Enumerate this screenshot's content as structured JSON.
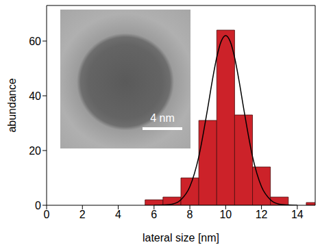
{
  "chart_data": {
    "type": "histogram",
    "x_label": "lateral size [nm]",
    "y_label": "abundance",
    "bins": [
      5.5,
      6.5,
      7.5,
      8.5,
      9.5,
      10.5,
      11.5,
      12.5,
      13.5,
      14.5,
      15.5
    ],
    "values": [
      2,
      3,
      10,
      31,
      64,
      33,
      14,
      3,
      0,
      1
    ],
    "color": "#cc2229",
    "fit_curve": {
      "x": [
        6,
        6.5,
        7,
        7.5,
        8,
        8.5,
        9,
        9.25,
        9.5,
        9.75,
        10,
        10.25,
        10.5,
        10.75,
        11,
        11.5,
        12,
        12.5,
        13,
        13.5,
        14
      ],
      "y": [
        0,
        0.1,
        0.4,
        2,
        6.8,
        17.8,
        35.6,
        45.4,
        54,
        59.9,
        62,
        59.9,
        54,
        45.4,
        35.6,
        17.8,
        6.8,
        2,
        0.4,
        0.1,
        0
      ],
      "color": "#000000"
    },
    "xlim": [
      0,
      15
    ],
    "xticks": [
      0,
      2,
      4,
      6,
      8,
      10,
      12,
      14
    ],
    "ylim": [
      0,
      73
    ],
    "yticks": [
      0,
      20,
      40,
      60
    ],
    "annotations": [
      "4 nm"
    ]
  }
}
